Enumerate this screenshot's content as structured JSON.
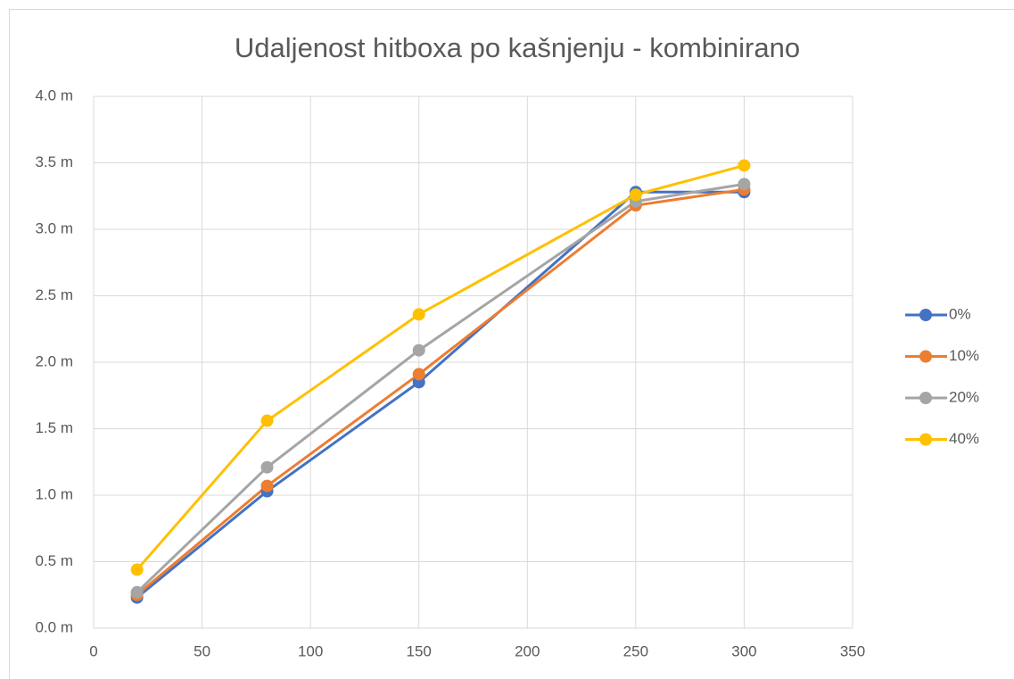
{
  "chart_data": {
    "type": "line",
    "title": "Udaljenost hitboxa po kašnjenju - kombinirano",
    "x": [
      20,
      80,
      150,
      250,
      300
    ],
    "series": [
      {
        "name": "0%",
        "color": "#4472c4",
        "values": [
          0.23,
          1.03,
          1.85,
          3.28,
          3.28
        ]
      },
      {
        "name": "10%",
        "color": "#ed7d31",
        "values": [
          0.25,
          1.07,
          1.91,
          3.18,
          3.3
        ]
      },
      {
        "name": "20%",
        "color": "#a5a5a5",
        "values": [
          0.27,
          1.21,
          2.09,
          3.21,
          3.34
        ]
      },
      {
        "name": "40%",
        "color": "#ffc000",
        "values": [
          0.44,
          1.56,
          2.36,
          3.26,
          3.48
        ]
      }
    ],
    "xlim": [
      0,
      350
    ],
    "xticks": [
      0,
      50,
      100,
      150,
      200,
      250,
      300,
      350
    ],
    "ylim": [
      0,
      4
    ],
    "yticks": [
      {
        "value": 0,
        "label": "0.0 m"
      },
      {
        "value": 0.5,
        "label": "0.5 m"
      },
      {
        "value": 1,
        "label": "1.0 m"
      },
      {
        "value": 1.5,
        "label": "1.5 m"
      },
      {
        "value": 2,
        "label": "2.0 m"
      },
      {
        "value": 2.5,
        "label": "2.5 m"
      },
      {
        "value": 3,
        "label": "3.0 m"
      },
      {
        "value": 3.5,
        "label": "3.5 m"
      },
      {
        "value": 4,
        "label": "4.0 m"
      }
    ],
    "grid": true,
    "legend": "right"
  }
}
